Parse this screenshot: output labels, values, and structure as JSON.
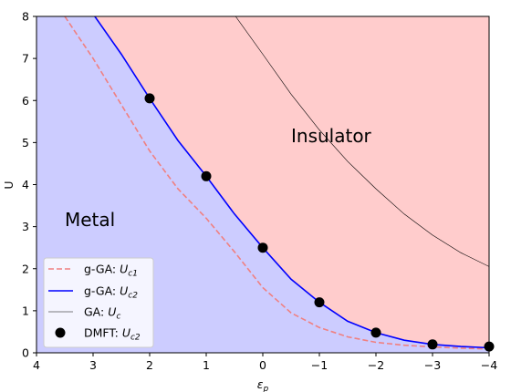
{
  "chart_data": {
    "type": "line",
    "xlabel": "εp",
    "ylabel": "U",
    "xlim": [
      4,
      -4
    ],
    "ylim": [
      0,
      8
    ],
    "x_ticks": [
      4,
      3,
      2,
      1,
      0,
      -1,
      -2,
      -3,
      -4
    ],
    "x_tick_labels": [
      "4",
      "3",
      "2",
      "1",
      "0",
      "−1",
      "−2",
      "−3",
      "−4"
    ],
    "y_ticks": [
      0,
      1,
      2,
      3,
      4,
      5,
      6,
      7,
      8
    ],
    "y_tick_labels": [
      "0",
      "1",
      "2",
      "3",
      "4",
      "5",
      "6",
      "7",
      "8"
    ],
    "regions": [
      {
        "label": "Metal",
        "color": "#ccccff"
      },
      {
        "label": "Insulator",
        "color": "#ffcccc"
      }
    ],
    "series": [
      {
        "name": "g-GA: U_c1",
        "legend_main": "g-GA: ",
        "legend_sym": "U",
        "legend_sub": "c1",
        "style": "dashed",
        "color": "#f08080",
        "x": [
          3.5,
          3.0,
          2.5,
          2.0,
          1.5,
          1.0,
          0.5,
          0.0,
          -0.5,
          -1.0,
          -1.5,
          -2.0,
          -2.5,
          -3.0,
          -3.5,
          -4.0
        ],
        "y": [
          8.0,
          7.0,
          5.9,
          4.8,
          3.9,
          3.2,
          2.4,
          1.55,
          0.95,
          0.6,
          0.38,
          0.25,
          0.18,
          0.14,
          0.11,
          0.09
        ]
      },
      {
        "name": "g-GA: U_c2",
        "legend_main": "g-GA: ",
        "legend_sym": "U",
        "legend_sub": "c2",
        "style": "solid",
        "color": "#0000ff",
        "x": [
          2.97,
          2.5,
          2.0,
          1.5,
          1.0,
          0.5,
          0.0,
          -0.5,
          -1.0,
          -1.5,
          -2.0,
          -2.5,
          -3.0,
          -3.5,
          -4.0
        ],
        "y": [
          8.0,
          7.1,
          6.05,
          5.05,
          4.2,
          3.3,
          2.5,
          1.75,
          1.2,
          0.75,
          0.48,
          0.3,
          0.2,
          0.15,
          0.12
        ]
      },
      {
        "name": "GA: U_c",
        "legend_main": "GA: ",
        "legend_sym": "U",
        "legend_sub": "c",
        "style": "thin",
        "color": "#000000",
        "x": [
          0.48,
          0.0,
          -0.5,
          -1.0,
          -1.5,
          -2.0,
          -2.5,
          -3.0,
          -3.5,
          -4.0
        ],
        "y": [
          8.0,
          7.1,
          6.15,
          5.3,
          4.55,
          3.9,
          3.3,
          2.8,
          2.38,
          2.05
        ]
      },
      {
        "name": "DMFT: U_c2",
        "legend_main": "DMFT: ",
        "legend_sym": "U",
        "legend_sub": "c2",
        "style": "markers",
        "color": "#000000",
        "x": [
          2,
          1,
          0,
          -1,
          -2,
          -3,
          -4
        ],
        "y": [
          6.05,
          4.2,
          2.5,
          1.2,
          0.48,
          0.2,
          0.15
        ]
      }
    ]
  }
}
